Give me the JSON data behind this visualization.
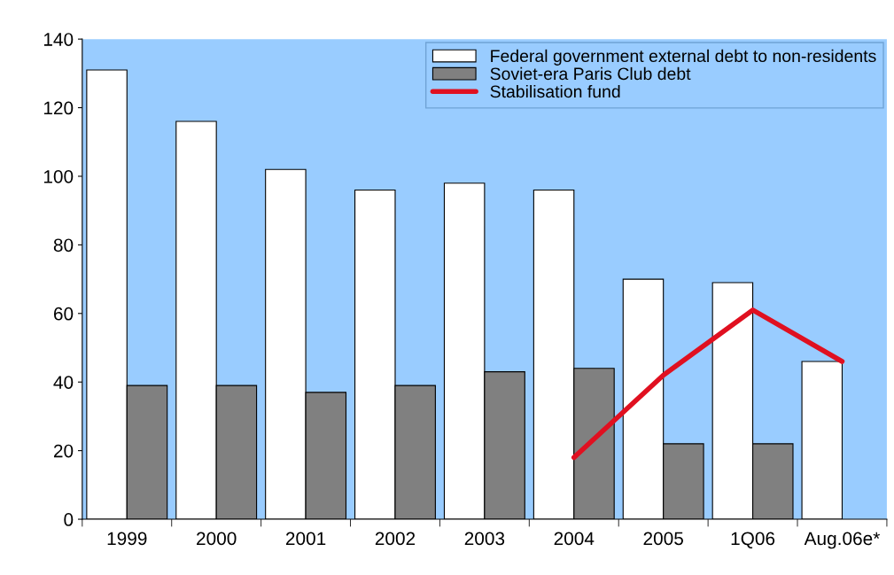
{
  "chart_data": {
    "type": "bar",
    "categories": [
      "1999",
      "2000",
      "2001",
      "2002",
      "2003",
      "2004",
      "2005",
      "1Q06",
      "Aug.06e*"
    ],
    "series": [
      {
        "name": "Federal government external debt to non-residents",
        "color": "#ffffff",
        "values": [
          131,
          116,
          102,
          96,
          98,
          96,
          70,
          69,
          46
        ]
      },
      {
        "name": "Soviet-era Paris Club debt",
        "color": "#808080",
        "values": [
          39,
          39,
          37,
          39,
          43,
          44,
          22,
          22,
          null
        ]
      },
      {
        "name": "Stabilisation fund",
        "color": "#e01020",
        "type": "line",
        "values": [
          null,
          null,
          null,
          null,
          null,
          18,
          42,
          61,
          46
        ]
      }
    ],
    "ylim": [
      0,
      140
    ],
    "yticks": [
      0,
      20,
      40,
      60,
      80,
      100,
      120,
      140
    ],
    "grid": false,
    "legend": "top right"
  }
}
